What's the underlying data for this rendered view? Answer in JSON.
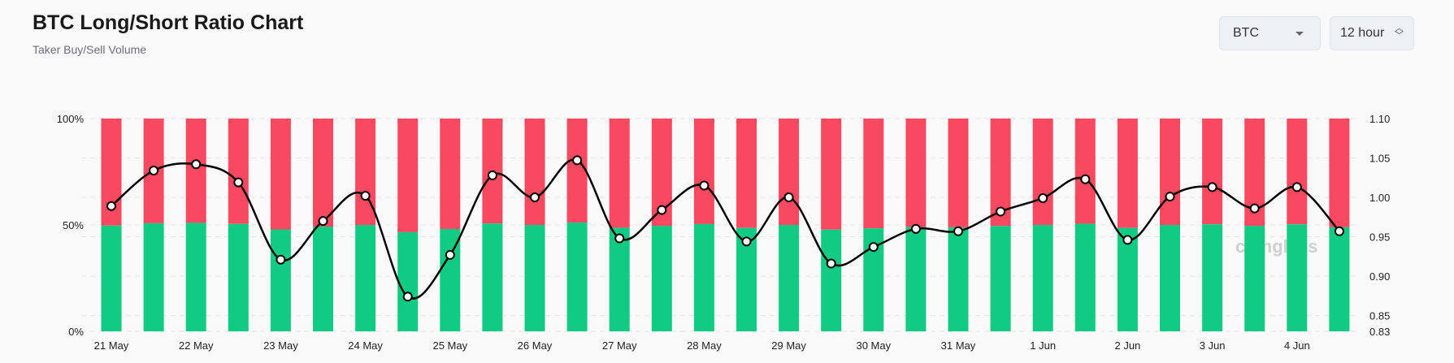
{
  "header": {
    "title": "BTC Long/Short Ratio Chart",
    "subtitle": "Taker Buy/Sell Volume"
  },
  "controls": {
    "symbol": "BTC",
    "interval": "12 hour"
  },
  "watermark": "coinglass",
  "colors": {
    "long": "#10cb84",
    "short": "#f84960",
    "line": "#000000"
  },
  "chart_data": {
    "type": "bar",
    "stacked": true,
    "title": "BTC Long/Short Ratio Chart",
    "subtitle": "Taker Buy/Sell Volume",
    "x_tick_labels": [
      "21 May",
      "22 May",
      "23 May",
      "24 May",
      "25 May",
      "26 May",
      "27 May",
      "28 May",
      "29 May",
      "30 May",
      "31 May",
      "1 Jun",
      "2 Jun",
      "3 Jun",
      "4 Jun"
    ],
    "left_axis": {
      "ticks": [
        "100%",
        "50%",
        "0%"
      ],
      "range": [
        0,
        100
      ]
    },
    "right_axis": {
      "ticks": [
        "1.10",
        "1.05",
        "1.00",
        "0.95",
        "0.90",
        "0.85",
        "0.83"
      ],
      "range": [
        0.83,
        1.1
      ]
    },
    "grid": "horizontal dashed",
    "long_percent": [
      49.7,
      50.8,
      51.0,
      50.5,
      47.9,
      49.2,
      50.0,
      46.6,
      48.1,
      50.7,
      50.0,
      51.1,
      48.7,
      49.6,
      50.4,
      48.6,
      50.0,
      47.8,
      48.4,
      49.0,
      48.9,
      49.5,
      50.0,
      50.6,
      48.6,
      50.0,
      50.3,
      49.6,
      50.3,
      48.9
    ],
    "ratio": [
      0.989,
      1.034,
      1.042,
      1.019,
      0.921,
      0.97,
      1.002,
      0.874,
      0.927,
      1.028,
      1.0,
      1.047,
      0.948,
      0.984,
      1.015,
      0.944,
      1.0,
      0.916,
      0.937,
      0.96,
      0.957,
      0.982,
      0.999,
      1.023,
      0.946,
      1.001,
      1.013,
      0.986,
      1.013,
      0.957
    ]
  }
}
